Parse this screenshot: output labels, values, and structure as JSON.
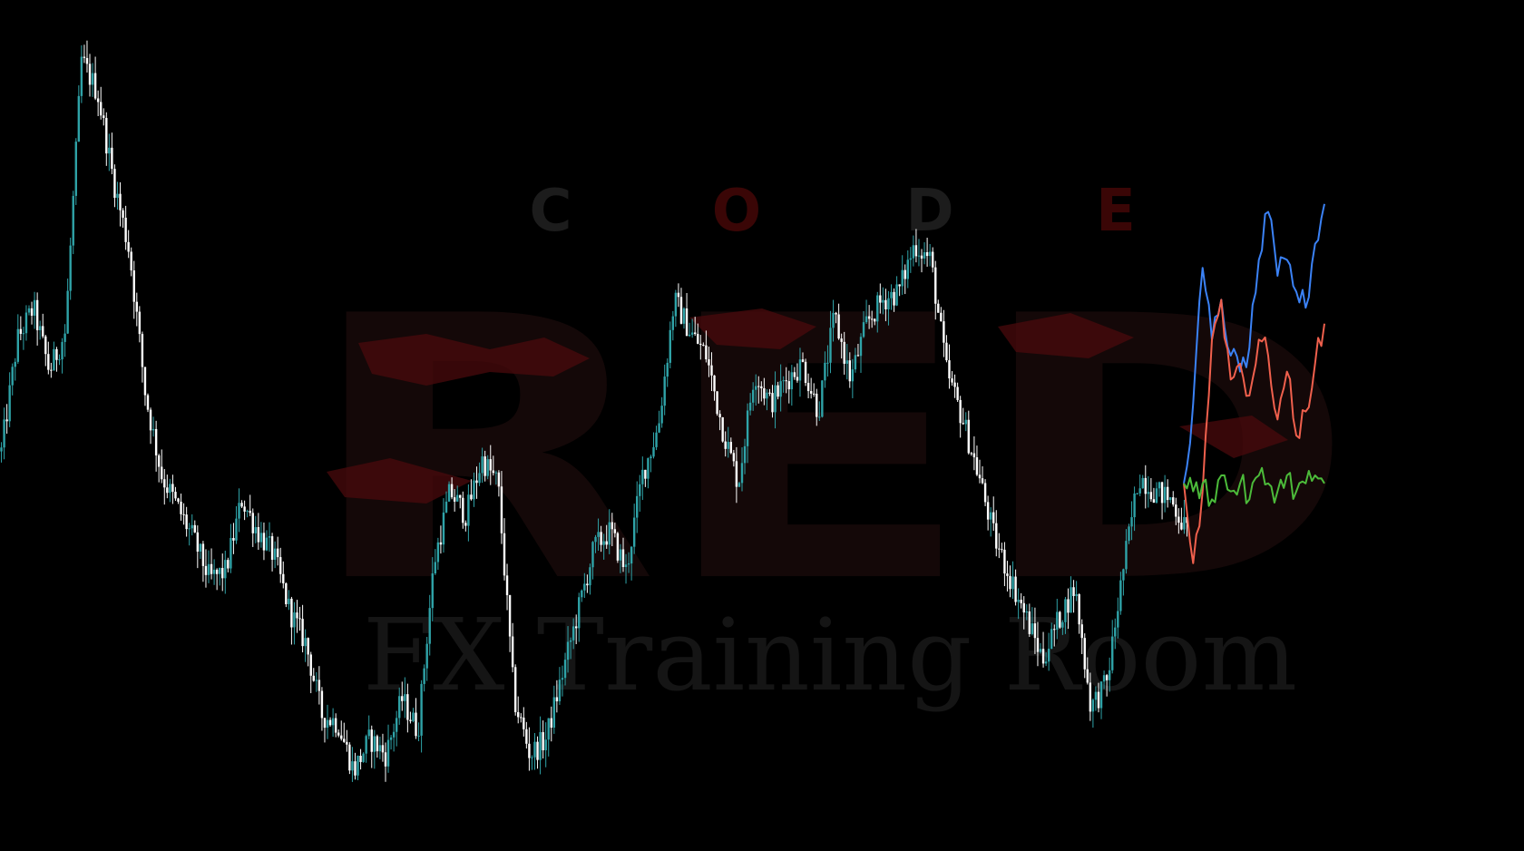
{
  "watermark": {
    "top_letters": [
      "C",
      "O",
      "D",
      "E"
    ],
    "main_word": "RED",
    "subtitle": "FX Training Room",
    "colors": {
      "code_dark": "#1c1c1c",
      "code_red": "#3a0606",
      "red_block": "#140808",
      "red_splash": "#4a0a0c",
      "subtitle": "#151515"
    }
  },
  "chart_data": {
    "type": "candlestick",
    "title": "",
    "xlabel": "",
    "ylabel": "",
    "grid": false,
    "legend": "none",
    "ylim": [
      0,
      100
    ],
    "colors": {
      "background": "#000000",
      "bull": "#2fa3a8",
      "bear": "#ffffff"
    },
    "price_path": [
      [
        0,
        48
      ],
      [
        1,
        62
      ],
      [
        2,
        66
      ],
      [
        3,
        58
      ],
      [
        4,
        63
      ],
      [
        5,
        97
      ],
      [
        6,
        93
      ],
      [
        7,
        82
      ],
      [
        8,
        73
      ],
      [
        9,
        55
      ],
      [
        10,
        45
      ],
      [
        11,
        41
      ],
      [
        12,
        37
      ],
      [
        13,
        32
      ],
      [
        14,
        33
      ],
      [
        15,
        42
      ],
      [
        16,
        38
      ],
      [
        17,
        35
      ],
      [
        18,
        28
      ],
      [
        19,
        24
      ],
      [
        20,
        15
      ],
      [
        21,
        14
      ],
      [
        22,
        8
      ],
      [
        23,
        12
      ],
      [
        24,
        10
      ],
      [
        25,
        17
      ],
      [
        26,
        13
      ],
      [
        27,
        34
      ],
      [
        28,
        43
      ],
      [
        29,
        40
      ],
      [
        30,
        47
      ],
      [
        31,
        44
      ],
      [
        32,
        17
      ],
      [
        33,
        10
      ],
      [
        34,
        12
      ],
      [
        35,
        20
      ],
      [
        36,
        28
      ],
      [
        37,
        36
      ],
      [
        38,
        38
      ],
      [
        39,
        33
      ],
      [
        40,
        45
      ],
      [
        41,
        51
      ],
      [
        42,
        67
      ],
      [
        43,
        63
      ],
      [
        44,
        60
      ],
      [
        45,
        51
      ],
      [
        46,
        44
      ],
      [
        47,
        58
      ],
      [
        48,
        54
      ],
      [
        49,
        57
      ],
      [
        50,
        59
      ],
      [
        51,
        53
      ],
      [
        52,
        65
      ],
      [
        53,
        57
      ],
      [
        54,
        64
      ],
      [
        55,
        67
      ],
      [
        56,
        68
      ],
      [
        57,
        74
      ],
      [
        58,
        72
      ],
      [
        59,
        58
      ],
      [
        60,
        52
      ],
      [
        61,
        45
      ],
      [
        62,
        37
      ],
      [
        63,
        32
      ],
      [
        64,
        27
      ],
      [
        65,
        22
      ],
      [
        66,
        27
      ],
      [
        67,
        31
      ],
      [
        68,
        16
      ],
      [
        69,
        19
      ],
      [
        70,
        33
      ],
      [
        71,
        45
      ],
      [
        72,
        43
      ],
      [
        73,
        42
      ],
      [
        74,
        38
      ]
    ],
    "forecast_series": [
      {
        "color": "#3b82f6",
        "values": [
          44,
          54,
          71,
          62,
          67,
          60,
          58,
          61,
          72,
          78,
          70,
          72,
          68,
          66,
          74,
          79
        ]
      },
      {
        "color": "#f0604d",
        "values": [
          44,
          34,
          43,
          62,
          67,
          57,
          59,
          55,
          62,
          60,
          52,
          58,
          50,
          53,
          59,
          64
        ]
      },
      {
        "color": "#4cbb3a",
        "values": [
          44,
          43,
          44,
          42,
          45,
          43,
          44,
          42,
          45,
          44,
          43,
          45,
          43,
          44,
          45,
          44
        ]
      }
    ]
  }
}
